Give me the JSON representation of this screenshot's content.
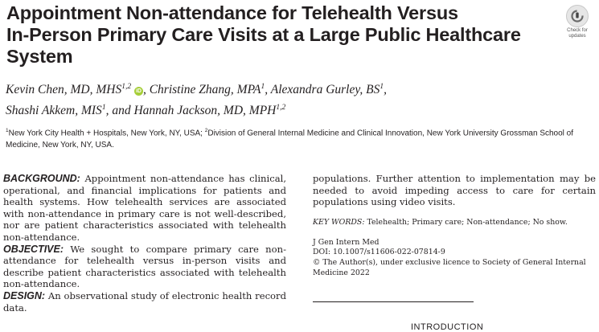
{
  "header": {
    "title_lines": [
      "Appointment Non-attendance for Telehealth Versus",
      "In-Person Primary Care Visits at a Large Public Healthcare",
      "System"
    ],
    "badge": {
      "label_line1": "Check for",
      "label_line2": "updates",
      "icon": "check-for-updates-icon"
    }
  },
  "authors": [
    {
      "name": "Kevin Chen, MD, MHS",
      "sup": "1,2",
      "orcid": true
    },
    {
      "name": "Christine Zhang, MPA",
      "sup": "1"
    },
    {
      "name": "Alexandra Gurley, BS",
      "sup": "1"
    },
    {
      "name": "Shashi Akkem, MIS",
      "sup": "1"
    },
    {
      "name": "Hannah Jackson, MD, MPH",
      "sup": "1,2"
    }
  ],
  "authors_connector": "and",
  "orcid_glyph": "iD",
  "affiliations": {
    "a1_sup": "1",
    "a1_text": "New York City Health + Hospitals, New York, NY, USA; ",
    "a2_sup": "2",
    "a2_text": "Division of General Internal Medicine and Clinical Innovation, New York University Grossman School of Medicine, New York, NY, USA."
  },
  "abstract": [
    {
      "label": "BACKGROUND:",
      "text": "Appointment non-attendance has clinical, operational, and financial implications for patients and health systems. How telehealth services are associated with non-attendance in primary care is not well-described, nor are patient characteristics associated with telehealth non-attendance."
    },
    {
      "label": "OBJECTIVE:",
      "text": "We sought to compare primary care non-attendance for telehealth versus in-person visits and describe patient characteristics associated with telehealth non-attendance."
    },
    {
      "label": "DESIGN:",
      "text": "An observational study of electronic health record data."
    }
  ],
  "right_column": {
    "continuation": "populations. Further attention to implementation may be needed to avoid impeding access to care for certain populations using video visits.",
    "keywords_label": "KEY WORDS:",
    "keywords": "Telehealth; Primary care; Non-attendance; No show.",
    "journal": "J Gen Intern Med",
    "doi": "DOI: 10.1007/s11606-022-07814-9",
    "license": "© The Author(s), under exclusive licence to Society of General Internal Medicine 2022"
  },
  "next_section": "INTRODUCTION"
}
